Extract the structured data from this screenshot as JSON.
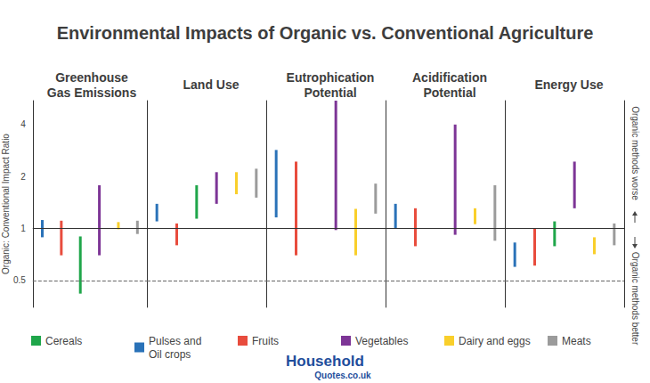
{
  "chart_data": {
    "type": "range_bar",
    "title": "Environmental Impacts of Organic vs. Conventional Agriculture",
    "categories": [
      "Greenhouse\nGas Emissions",
      "Land Use",
      "Eutrophication\nPotential",
      "Acidification\nPotential",
      "Energy Use"
    ],
    "y_label": "Organic: Conventional Impact Ratio",
    "log": "y",
    "ylim": [
      0.35,
      5.5
    ],
    "yticks": [
      0.5,
      1,
      2,
      4
    ],
    "grid": false,
    "legend": "bottom",
    "reference_lines": [
      {
        "value": 1,
        "line_style": "solid"
      },
      {
        "value": 0.5,
        "line_style": "dashed"
      }
    ],
    "annotations": [
      "Organic methods worse",
      "Organic methods better"
    ],
    "source": [
      "Household",
      "Quotes.co.uk"
    ],
    "series": [
      {
        "name": "Cereals",
        "color": "#1fa64a",
        "values": [
          [
            0.42,
            0.9
          ],
          [
            1.14,
            1.78
          ],
          null,
          null,
          [
            0.79,
            1.1
          ]
        ]
      },
      {
        "name": "Pulses and\nOil crops",
        "color": "#2a72b8",
        "values": [
          [
            0.89,
            1.12
          ],
          [
            1.1,
            1.39
          ],
          [
            1.16,
            2.85
          ],
          [
            1.0,
            1.39
          ],
          [
            0.6,
            0.83
          ]
        ]
      },
      {
        "name": "Fruits",
        "color": "#e84c3d",
        "values": [
          [
            0.7,
            1.11
          ],
          [
            0.8,
            1.07
          ],
          [
            0.7,
            2.44
          ],
          [
            0.79,
            1.31
          ],
          [
            0.61,
            1.0
          ]
        ]
      },
      {
        "name": "Vegetables",
        "color": "#7d3596",
        "values": [
          [
            0.7,
            1.78
          ],
          [
            1.39,
            2.12
          ],
          [
            0.98,
            5.5
          ],
          [
            0.92,
            4.0
          ],
          [
            1.31,
            2.44
          ]
        ]
      },
      {
        "name": "Dairy and eggs",
        "color": "#f9cf2b",
        "values": [
          [
            0.99,
            1.09
          ],
          [
            1.58,
            2.12
          ],
          [
            0.7,
            1.3
          ],
          [
            1.06,
            1.31
          ],
          [
            0.71,
            0.89
          ]
        ]
      },
      {
        "name": "Meats",
        "color": "#9b9b9b",
        "values": [
          [
            0.93,
            1.11
          ],
          [
            1.51,
            2.22
          ],
          [
            1.22,
            1.82
          ],
          [
            0.85,
            1.78
          ],
          [
            0.8,
            1.07
          ]
        ]
      }
    ]
  }
}
